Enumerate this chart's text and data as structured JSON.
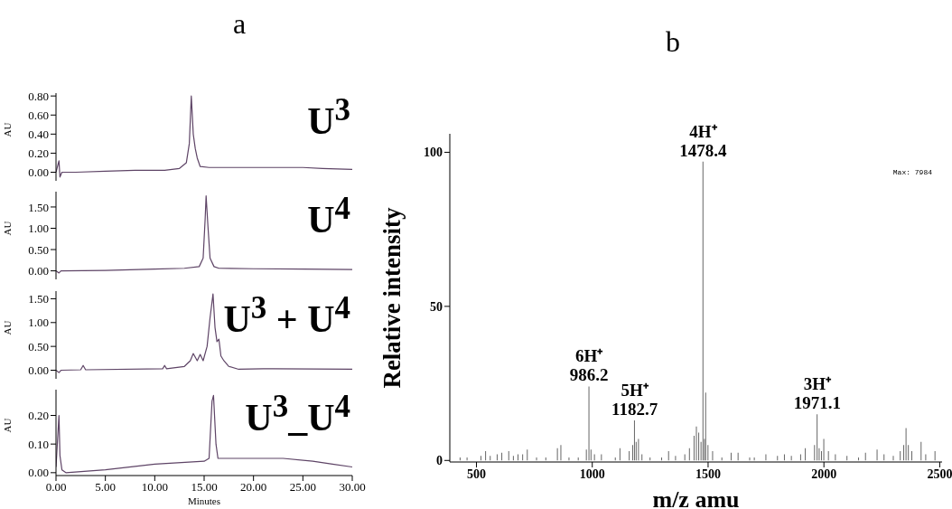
{
  "chart_data": [
    {
      "type": "line",
      "title": "a",
      "ylabel": "AU",
      "color": "#5e4466",
      "annotations": [
        "U$^{3}$"
      ],
      "tick_labels": "y",
      "x": [
        0,
        0.3,
        0.4,
        0.6,
        2,
        5,
        8,
        11,
        12.5,
        13.2,
        13.5,
        13.7,
        13.9,
        14.1,
        14.3,
        14.6,
        15.5,
        20,
        25,
        27,
        30
      ],
      "values": [
        0,
        0.12,
        -0.05,
        0,
        0,
        0.01,
        0.02,
        0.02,
        0.04,
        0.1,
        0.3,
        0.8,
        0.4,
        0.25,
        0.15,
        0.06,
        0.05,
        0.05,
        0.05,
        0.04,
        0.03
      ],
      "xlim": [
        0,
        30
      ],
      "ylim": [
        -0.09,
        0.83
      ],
      "yticks": [
        {
          "value": 0,
          "label": "0.00"
        },
        {
          "value": 0.2,
          "label": "0.20"
        },
        {
          "value": 0.4,
          "label": "0.40"
        },
        {
          "value": 0.6,
          "label": "0.60"
        },
        {
          "value": 0.8,
          "label": "0.80"
        }
      ]
    },
    {
      "type": "line",
      "ylabel": "AU",
      "color": "#5e4466",
      "annotations": [
        "U$^{4}$"
      ],
      "tick_labels": "y",
      "x": [
        0,
        0.3,
        0.5,
        5,
        10,
        13,
        14.5,
        14.9,
        15.1,
        15.2,
        15.4,
        15.6,
        16,
        16.5,
        20,
        25,
        30
      ],
      "values": [
        0,
        -0.05,
        0,
        0.01,
        0.04,
        0.06,
        0.1,
        0.3,
        1.2,
        1.76,
        1,
        0.3,
        0.1,
        0.06,
        0.05,
        0.04,
        0.03
      ],
      "xlim": [
        0,
        30
      ],
      "ylim": [
        -0.2,
        1.86
      ],
      "yticks": [
        {
          "value": 0,
          "label": "0.00"
        },
        {
          "value": 0.5,
          "label": "0.50"
        },
        {
          "value": 1,
          "label": "1.00"
        },
        {
          "value": 1.5,
          "label": "1.50"
        }
      ]
    },
    {
      "type": "line",
      "ylabel": "AU",
      "color": "#5e4466",
      "annotations": [
        "U$^{3}$ + U$^{4}$"
      ],
      "tick_labels": "y",
      "x": [
        0,
        0.3,
        0.5,
        2.5,
        2.75,
        3,
        10.8,
        11,
        11.2,
        13,
        13.6,
        13.9,
        14.3,
        14.6,
        14.9,
        15.3,
        15.6,
        15.9,
        16.1,
        16.3,
        16.5,
        16.7,
        17,
        17.5,
        18.5,
        21,
        22,
        30
      ],
      "values": [
        0,
        -0.05,
        0,
        0.01,
        0.1,
        0.01,
        0.03,
        0.1,
        0.03,
        0.08,
        0.2,
        0.35,
        0.2,
        0.33,
        0.2,
        0.5,
        1.1,
        1.6,
        0.9,
        0.6,
        0.65,
        0.3,
        0.2,
        0.08,
        0.02,
        0.03,
        0.03,
        0.02
      ],
      "xlim": [
        0,
        30
      ],
      "ylim": [
        -0.18,
        1.66
      ],
      "yticks": [
        {
          "value": 0,
          "label": "0.00"
        },
        {
          "value": 0.5,
          "label": "0.50"
        },
        {
          "value": 1,
          "label": "1.00"
        },
        {
          "value": 1.5,
          "label": "1.50"
        }
      ]
    },
    {
      "type": "line",
      "ylabel": "AU",
      "xlabel": "Minutes",
      "color": "#5e4466",
      "annotations": [
        "U$^{3}$_U$^{4}$"
      ],
      "x": [
        0,
        0.3,
        0.4,
        0.6,
        1,
        5,
        10,
        15,
        15.5,
        15.8,
        15.95,
        16.2,
        16.4,
        18,
        20,
        23,
        26,
        28,
        30
      ],
      "values": [
        0.02,
        0.2,
        0.06,
        0.01,
        0,
        0.01,
        0.03,
        0.04,
        0.05,
        0.25,
        0.27,
        0.1,
        0.05,
        0.05,
        0.05,
        0.05,
        0.04,
        0.03,
        0.02
      ],
      "xlim": [
        0,
        30
      ],
      "xticks": [
        {
          "value": 0,
          "label": "0.00"
        },
        {
          "value": 5,
          "label": "5.00"
        },
        {
          "value": 10,
          "label": "10.00"
        },
        {
          "value": 15,
          "label": "15.00"
        },
        {
          "value": 20,
          "label": "20.00"
        },
        {
          "value": 25,
          "label": "25.00"
        },
        {
          "value": 30,
          "label": "30.00"
        }
      ],
      "ylim": [
        -0.01,
        0.29
      ],
      "yticks": [
        {
          "value": 0,
          "label": "0.00"
        },
        {
          "value": 0.1,
          "label": "0.10"
        },
        {
          "value": 0.2,
          "label": "0.20"
        }
      ]
    },
    {
      "type": "bar",
      "title": "b",
      "xlabel": "m/z amu",
      "ylabel": "Relative intensity",
      "color": "#666666",
      "annotations": [
        {
          "text": "4H⁺ 1478.4",
          "x": 1478.4,
          "y": 97
        },
        {
          "text": "6H⁺ 986.2",
          "x": 986.2,
          "y": 24
        },
        {
          "text": "5H⁺ 1182.7",
          "x": 1182.7,
          "y": 13
        },
        {
          "text": "3H⁺ 1971.1",
          "x": 1971.1,
          "y": 15
        },
        "Max: 7984"
      ],
      "x": [
        430,
        460,
        520,
        540,
        560,
        590,
        610,
        640,
        660,
        680,
        700,
        720,
        760,
        800,
        850,
        865,
        900,
        940,
        975,
        986.2,
        995,
        1010,
        1040,
        1100,
        1120,
        1160,
        1175,
        1182.7,
        1190,
        1200,
        1215,
        1250,
        1300,
        1330,
        1360,
        1400,
        1420,
        1440,
        1450,
        1460,
        1470,
        1478.4,
        1485,
        1490,
        1500,
        1520,
        1560,
        1600,
        1630,
        1680,
        1700,
        1750,
        1800,
        1830,
        1860,
        1900,
        1920,
        1960,
        1971.1,
        1980,
        1990,
        2000,
        2020,
        2050,
        2100,
        2150,
        2180,
        2230,
        2260,
        2300,
        2330,
        2345,
        2355,
        2365,
        2380,
        2420,
        2440,
        2480
      ],
      "values": [
        1,
        1,
        1.5,
        3,
        1.5,
        2,
        2.5,
        3,
        1.5,
        2,
        2,
        3.5,
        1,
        1,
        4,
        5,
        1,
        1,
        3.5,
        24,
        3.5,
        2,
        2,
        1,
        4,
        3,
        5,
        13,
        6,
        7,
        2,
        1,
        1,
        3,
        1.5,
        2,
        4,
        8,
        11,
        9,
        6,
        97,
        7,
        22,
        5,
        3,
        1,
        2.5,
        2.5,
        1,
        1,
        2,
        1.5,
        2,
        1.5,
        2,
        4,
        5,
        15,
        4,
        3,
        7,
        3,
        2,
        1.5,
        1,
        2.5,
        3.5,
        2,
        1.5,
        3,
        5,
        10.5,
        5,
        3,
        6,
        2,
        3
      ],
      "xlim": [
        385,
        2510
      ],
      "xticks": [
        500,
        1000,
        1500,
        2000,
        2500
      ],
      "ylim": [
        -0.5,
        106
      ],
      "yticks": [
        0,
        50,
        100
      ]
    }
  ]
}
